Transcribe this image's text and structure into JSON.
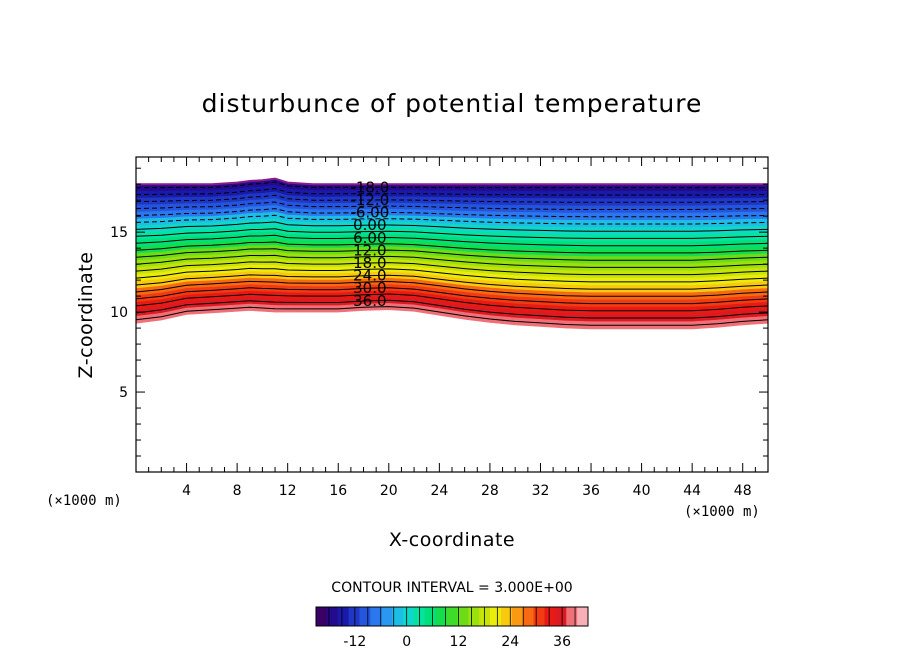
{
  "chart_data": {
    "type": "contour",
    "title": "disturbunce of potential temperature",
    "xlabel": "X-coordinate",
    "ylabel": "Z-coordinate",
    "x_unit": "(×1000 m)",
    "y_unit": "(×1000 m)",
    "xlim": [
      0,
      50
    ],
    "ylim": [
      0,
      19.7
    ],
    "x_ticks": [
      4,
      8,
      12,
      16,
      20,
      24,
      28,
      32,
      36,
      40,
      44,
      48
    ],
    "y_ticks": [
      5,
      10,
      15
    ],
    "contour_interval_text": "CONTOUR INTERVAL = 3.000E+00",
    "contour_interval": 3,
    "levels": [
      -18,
      -15,
      -12,
      -9,
      -6,
      -3,
      0,
      3,
      6,
      9,
      12,
      15,
      18,
      21,
      24,
      27,
      30,
      33,
      36,
      39
    ],
    "contour_labels": [
      "-18.0",
      "-12.0",
      "-6.00",
      "0.00",
      "6.00",
      "12.0",
      "18.0",
      "24.0",
      "30.0",
      "36.0"
    ],
    "contour_label_values": [
      -18,
      -12,
      -6,
      0,
      6,
      12,
      18,
      24,
      30,
      36
    ],
    "colorbar": {
      "tick_labels": [
        "-12",
        "0",
        "12",
        "24",
        "36"
      ],
      "tick_values": [
        -12,
        0,
        12,
        24,
        36
      ],
      "range": [
        -21,
        42
      ],
      "colors": [
        "#3b0066",
        "#240a8c",
        "#1a1aa8",
        "#1f37c4",
        "#2555dd",
        "#2a77ee",
        "#2a98f2",
        "#1ebde6",
        "#0fd8c8",
        "#05e3a0",
        "#00e07a",
        "#14dd4d",
        "#3edb2b",
        "#6cdc16",
        "#9be10c",
        "#c7e40a",
        "#ecec0c",
        "#f8c90e",
        "#f99a10",
        "#f76a12",
        "#f23b12",
        "#e81a14",
        "#dd1a22",
        "#f07078",
        "#f7b0b5"
      ]
    },
    "profiles": {
      "x": [
        0,
        2,
        4,
        6,
        8,
        9,
        10,
        11,
        12,
        14,
        16,
        18,
        20,
        22,
        24,
        26,
        28,
        30,
        32,
        34,
        36,
        38,
        40,
        42,
        44,
        46,
        48,
        50
      ],
      "top_z": [
        18.0,
        18.0,
        18.0,
        18.0,
        18.1,
        18.2,
        18.25,
        18.35,
        18.1,
        18.0,
        18.0,
        18.0,
        18.0,
        18.0,
        18.0,
        18.0,
        18.0,
        18.0,
        18.0,
        18.0,
        18.0,
        18.0,
        18.0,
        18.0,
        18.0,
        18.0,
        18.0,
        18.0
      ],
      "bottom_z": [
        9.3,
        9.5,
        9.85,
        9.95,
        10.05,
        10.1,
        10.05,
        10.0,
        10.0,
        10.0,
        10.0,
        10.1,
        10.15,
        10.05,
        9.8,
        9.55,
        9.35,
        9.2,
        9.1,
        9.0,
        8.95,
        8.95,
        8.95,
        8.95,
        8.95,
        9.05,
        9.2,
        9.3
      ]
    },
    "grid": false,
    "legend": "colorbar-bottom"
  }
}
